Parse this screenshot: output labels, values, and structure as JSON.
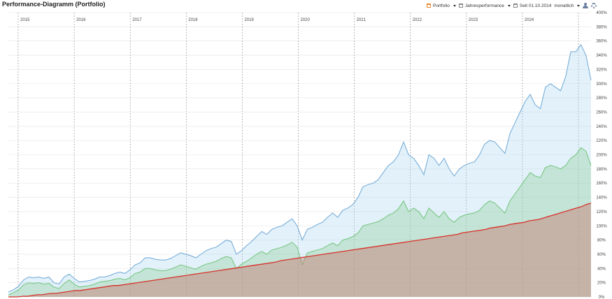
{
  "header": {
    "title": "Performance-Diagramm (Portfolio)",
    "portfolio_label": "Portfolio",
    "performance_label": "Jahresperformance",
    "since_label": "Seit 01.10.2014",
    "interval_label": "monatlich",
    "icons": [
      "calendar-icon",
      "user-icon",
      "gear-icon"
    ]
  },
  "chart_data": {
    "type": "area",
    "x_tick_labels": [
      "2015",
      "2016",
      "2017",
      "2018",
      "2019",
      "2020",
      "2021",
      "2022",
      "2023",
      "2024"
    ],
    "y_tick_labels": [
      "0%",
      "20%",
      "40%",
      "60%",
      "80%",
      "100%",
      "120%",
      "140%",
      "160%",
      "180%",
      "200%",
      "220%",
      "240%",
      "260%",
      "280%",
      "300%",
      "320%",
      "340%",
      "360%",
      "380%",
      "400%"
    ],
    "ylim": [
      0,
      400
    ],
    "grid": true,
    "colors": {
      "blue": "#6fa8d6",
      "green": "#74c47c",
      "red": "#d9322b"
    },
    "series": [
      {
        "values": [
          7,
          10,
          15,
          24,
          28,
          27,
          28,
          26,
          28,
          20,
          18,
          28,
          32,
          26,
          21,
          22,
          23,
          25,
          28,
          28,
          30,
          33,
          35,
          33,
          38,
          45,
          48,
          55,
          55,
          53,
          52,
          52,
          54,
          58,
          62,
          60,
          58,
          55,
          60,
          65,
          68,
          70,
          75,
          80,
          78,
          60,
          65,
          72,
          78,
          85,
          92,
          88,
          95,
          98,
          100,
          105,
          110,
          100,
          80,
          95,
          98,
          102,
          105,
          112,
          118,
          112,
          122,
          125,
          130,
          140,
          155,
          158,
          160,
          165,
          175,
          185,
          190,
          200,
          218,
          200,
          195,
          185,
          172,
          200,
          195,
          185,
          195,
          180,
          170,
          180,
          185,
          188,
          190,
          200,
          215,
          220,
          218,
          210,
          202,
          230,
          245,
          260,
          275,
          285,
          270,
          265,
          295,
          300,
          295,
          290,
          310,
          345,
          345,
          355,
          340,
          305
        ]
      },
      {
        "values": [
          3,
          6,
          10,
          17,
          20,
          19,
          20,
          18,
          19,
          14,
          12,
          19,
          24,
          18,
          14,
          15,
          16,
          18,
          21,
          22,
          23,
          25,
          26,
          24,
          27,
          33,
          35,
          40,
          40,
          38,
          37,
          37,
          39,
          42,
          45,
          43,
          41,
          39,
          43,
          46,
          48,
          50,
          54,
          57,
          55,
          40,
          46,
          50,
          55,
          60,
          64,
          60,
          66,
          68,
          70,
          73,
          77,
          70,
          45,
          62,
          64,
          66,
          68,
          72,
          76,
          72,
          80,
          82,
          85,
          90,
          100,
          102,
          104,
          106,
          110,
          115,
          118,
          124,
          135,
          120,
          125,
          120,
          110,
          125,
          118,
          112,
          120,
          110,
          105,
          112,
          115,
          117,
          118,
          122,
          130,
          135,
          132,
          125,
          118,
          135,
          145,
          155,
          165,
          175,
          170,
          168,
          182,
          185,
          183,
          180,
          185,
          195,
          200,
          210,
          205,
          185
        ]
      },
      {
        "values": [
          0,
          0,
          0,
          1,
          1,
          2,
          3,
          3,
          4,
          5,
          5,
          6,
          7,
          8,
          9,
          9,
          10,
          11,
          12,
          13,
          14,
          15,
          16,
          16,
          17,
          18,
          19,
          20,
          21,
          22,
          23,
          24,
          25,
          26,
          27,
          28,
          29,
          30,
          31,
          32,
          33,
          34,
          35,
          36,
          37,
          38,
          39,
          40,
          41,
          42,
          43,
          44,
          45,
          46,
          47,
          48,
          49,
          51,
          52,
          53,
          54,
          55,
          56,
          57,
          58,
          59,
          60,
          61,
          62,
          63,
          64,
          65,
          66,
          67,
          68,
          69,
          70,
          71,
          72,
          73,
          74,
          75,
          76,
          77,
          78,
          79,
          80,
          81,
          82,
          83,
          84,
          85,
          86,
          87,
          88,
          90,
          91,
          92,
          93,
          94,
          95,
          97,
          98,
          99,
          100,
          102,
          103,
          104,
          105,
          107,
          108,
          109,
          111,
          113,
          115,
          117,
          119,
          121,
          123,
          125,
          127,
          130,
          132
        ]
      }
    ]
  }
}
